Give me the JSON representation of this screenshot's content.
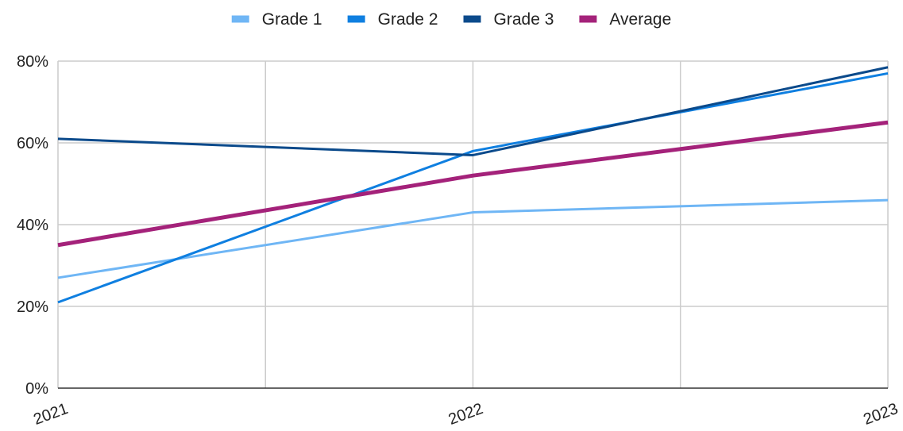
{
  "chart_data": {
    "type": "line",
    "title": "",
    "xlabel": "",
    "ylabel": "",
    "categories": [
      "2021",
      "2022",
      "2023"
    ],
    "y_ticks": [
      "0%",
      "20%",
      "40%",
      "60%",
      "80%"
    ],
    "ylim": [
      0,
      80
    ],
    "y_unit": "percent",
    "grid": true,
    "legend_position": "top",
    "series": [
      {
        "name": "Grade 1",
        "color": "#6FB6F5",
        "width": 3,
        "values": [
          27,
          43,
          46
        ]
      },
      {
        "name": "Grade 2",
        "color": "#0F7FE0",
        "width": 3,
        "values": [
          21,
          58,
          77
        ]
      },
      {
        "name": "Grade 3",
        "color": "#0B4A8B",
        "width": 3,
        "values": [
          61,
          57,
          78.5
        ]
      },
      {
        "name": "Average",
        "color": "#A4227A",
        "width": 5,
        "values": [
          35,
          52,
          65
        ]
      }
    ]
  }
}
